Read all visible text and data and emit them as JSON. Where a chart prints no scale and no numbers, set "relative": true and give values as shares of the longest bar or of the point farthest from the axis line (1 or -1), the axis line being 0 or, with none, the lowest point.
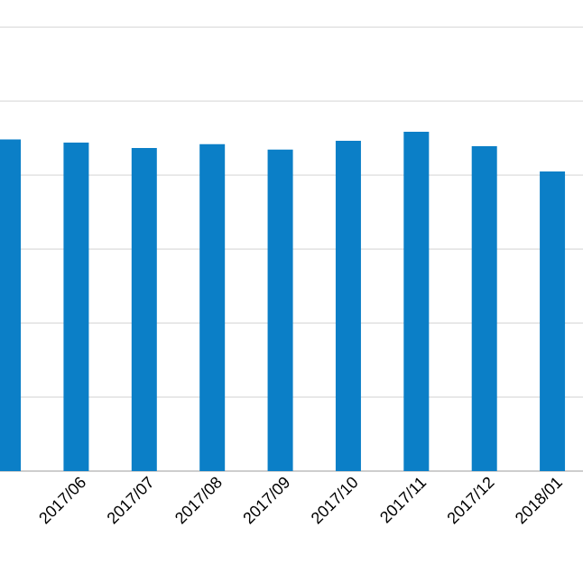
{
  "chart_data": {
    "type": "bar",
    "relative": true,
    "categories": [
      null,
      "2017/06",
      "2017/07",
      "2017/08",
      "2017/09",
      "2017/10",
      "2017/11",
      "2017/12",
      "2018/01"
    ],
    "values": [
      0.977,
      0.968,
      0.952,
      0.963,
      0.947,
      0.973,
      1,
      0.957,
      0.883
    ],
    "color": "#0b7fc7",
    "grid": "y"
  }
}
